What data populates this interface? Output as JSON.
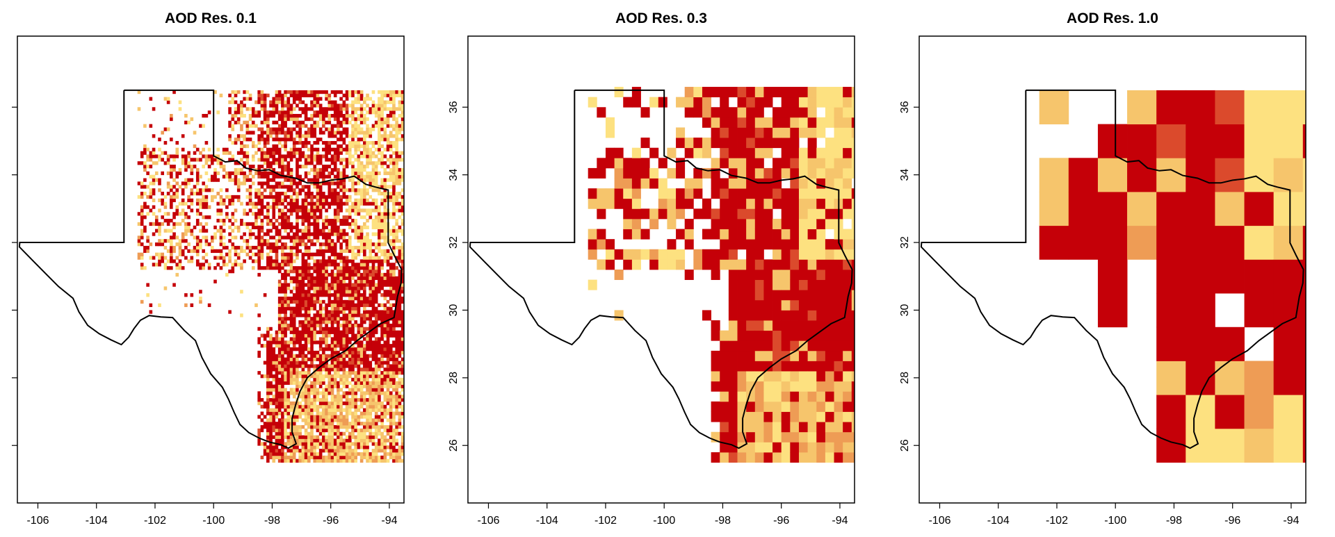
{
  "panels": [
    {
      "title": "AOD Res. 0.1",
      "resolution_deg": 0.1,
      "show_y_labels": false
    },
    {
      "title": "AOD Res. 0.3",
      "resolution_deg": 0.3,
      "show_y_labels": true
    },
    {
      "title": "AOD Res. 1.0",
      "resolution_deg": 1.0,
      "show_y_labels": true
    }
  ],
  "map": {
    "region": "Texas",
    "x_axis": {
      "range": [
        -106.7,
        -93.5
      ],
      "ticks": [
        -106,
        -104,
        -102,
        -100,
        -98,
        -96,
        -94
      ]
    },
    "y_axis": {
      "range": [
        24.3,
        38.1
      ],
      "ticks": [
        26,
        28,
        30,
        32,
        34,
        36
      ]
    },
    "color_scale": [
      "#c50008",
      "#db4a2c",
      "#ee9c55",
      "#f6c56c",
      "#fde180"
    ],
    "data_extent": {
      "lon": [
        -102.6,
        -93.5
      ],
      "lat": [
        25.5,
        36.5
      ]
    }
  }
}
